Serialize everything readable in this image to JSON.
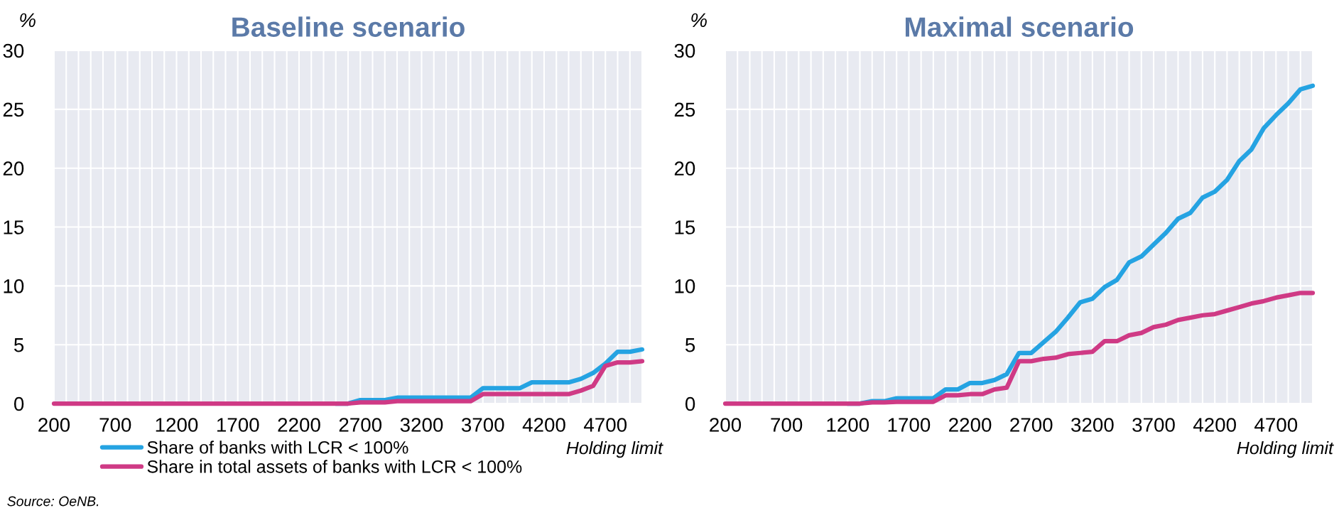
{
  "chart_data": [
    {
      "type": "line",
      "title": "Baseline scenario",
      "ylabel": "%",
      "xlabel": "Holding limit",
      "categories": [
        "200",
        null,
        null,
        null,
        null,
        "700",
        null,
        null,
        null,
        null,
        "1200",
        null,
        null,
        null,
        null,
        "1700",
        null,
        null,
        null,
        null,
        "2200",
        null,
        null,
        null,
        null,
        "2700",
        null,
        null,
        null,
        null,
        "3200",
        null,
        null,
        null,
        null,
        "3700",
        null,
        null,
        null,
        null,
        "4200",
        null,
        null,
        null,
        null,
        "4700",
        null,
        null,
        null
      ],
      "series": [
        {
          "name": "Share of banks with LCR < 100%",
          "color": "#25a3e2",
          "values": [
            null,
            null,
            null,
            null,
            null,
            null,
            null,
            null,
            null,
            null,
            null,
            null,
            null,
            null,
            null,
            null,
            null,
            null,
            null,
            null,
            null,
            null,
            null,
            0,
            0,
            0.3,
            0.3,
            0.3,
            0.5,
            0.5,
            0.5,
            0.5,
            0.5,
            0.5,
            0.5,
            1.3,
            1.3,
            1.3,
            1.3,
            1.8,
            1.8,
            1.8,
            1.8,
            2.1,
            2.6,
            3.4,
            4.4,
            4.4,
            4.6
          ]
        },
        {
          "name": "Share in total assets of banks with LCR < 100%",
          "color": "#cf3a85",
          "values": [
            0,
            0,
            0,
            0,
            0,
            0,
            0,
            0,
            0,
            0,
            0,
            0,
            0,
            0,
            0,
            0,
            0,
            0,
            0,
            0,
            0,
            0,
            0,
            0,
            0,
            0.1,
            0.1,
            0.1,
            0.2,
            0.2,
            0.2,
            0.2,
            0.2,
            0.2,
            0.2,
            0.8,
            0.8,
            0.8,
            0.8,
            0.8,
            0.8,
            0.8,
            0.8,
            1.1,
            1.5,
            3.2,
            3.5,
            3.5,
            3.6
          ]
        }
      ],
      "ylim": [
        0,
        30
      ],
      "yticks": [
        0,
        5,
        10,
        15,
        20,
        25,
        30
      ],
      "grid": true,
      "legend": "bottom",
      "annotations": [
        "Source: OeNB."
      ]
    },
    {
      "type": "line",
      "title": "Maximal scenario",
      "ylabel": "%",
      "xlabel": "Holding limit",
      "categories": [
        "200",
        null,
        null,
        null,
        null,
        "700",
        null,
        null,
        null,
        null,
        "1200",
        null,
        null,
        null,
        null,
        "1700",
        null,
        null,
        null,
        null,
        "2200",
        null,
        null,
        null,
        null,
        "2700",
        null,
        null,
        null,
        null,
        "3200",
        null,
        null,
        null,
        null,
        "3700",
        null,
        null,
        null,
        null,
        "4200",
        null,
        null,
        null,
        null,
        "4700",
        null,
        null,
        null
      ],
      "series": [
        {
          "color": "#25a3e2",
          "values": [
            null,
            null,
            null,
            null,
            null,
            null,
            null,
            null,
            null,
            null,
            0,
            0,
            0.2,
            0.2,
            0.45,
            0.45,
            0.45,
            0.45,
            1.2,
            1.2,
            1.75,
            1.75,
            2.0,
            2.5,
            4.3,
            4.3,
            5.2,
            6.1,
            7.3,
            8.6,
            8.9,
            9.9,
            10.5,
            12.0,
            12.5,
            13.5,
            14.5,
            15.7,
            16.2,
            17.5,
            18.0,
            19.0,
            20.6,
            21.6,
            23.4,
            24.5,
            25.5,
            26.7,
            27.0
          ]
        },
        {
          "color": "#cf3a85",
          "values": [
            0,
            0,
            0,
            0,
            0,
            0,
            0,
            0,
            0,
            0,
            0,
            0,
            0.1,
            0.1,
            0.15,
            0.15,
            0.15,
            0.15,
            0.7,
            0.7,
            0.8,
            0.8,
            1.2,
            1.35,
            3.6,
            3.6,
            3.8,
            3.9,
            4.2,
            4.3,
            4.4,
            5.3,
            5.3,
            5.8,
            6.0,
            6.5,
            6.7,
            7.1,
            7.3,
            7.5,
            7.6,
            7.9,
            8.2,
            8.5,
            8.7,
            9.0,
            9.2,
            9.4,
            9.4
          ]
        }
      ],
      "ylim": [
        0,
        30
      ],
      "yticks": [
        0,
        5,
        10,
        15,
        20,
        25,
        30
      ],
      "grid": true
    }
  ]
}
